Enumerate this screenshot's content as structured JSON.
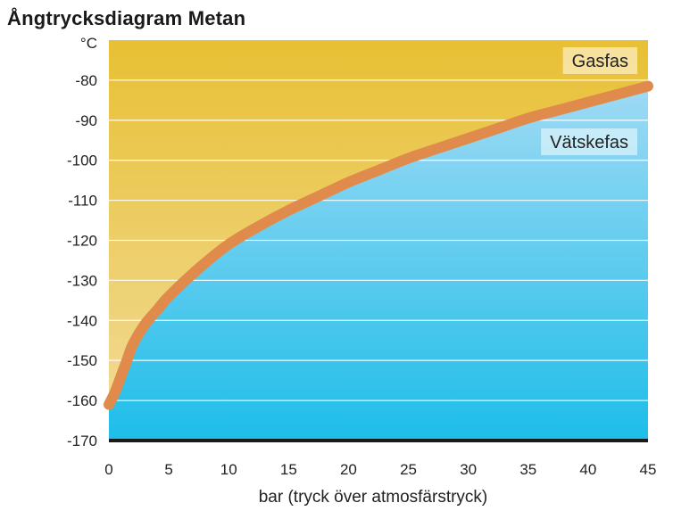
{
  "chart_data": {
    "type": "line",
    "title": "Ångtrycksdiagram Metan",
    "xlabel": "bar (tryck över atmosfärstryck)",
    "ylabel": "°C",
    "xlim": [
      0,
      45
    ],
    "ylim": [
      -170,
      -70
    ],
    "x_ticks": [
      0,
      5,
      10,
      15,
      20,
      25,
      30,
      35,
      40,
      45
    ],
    "y_ticks": [
      -80,
      -90,
      -100,
      -110,
      -120,
      -130,
      -140,
      -150,
      -160,
      -170
    ],
    "grid": true,
    "series": [
      {
        "x": [
          0,
          0.5,
          1,
          1.5,
          2,
          3,
          4,
          5,
          7.5,
          10,
          12.5,
          15,
          17.5,
          20,
          22.5,
          25,
          27.5,
          30,
          32.5,
          35,
          37.5,
          40,
          42.5,
          45
        ],
        "y": [
          -161,
          -158,
          -154,
          -150,
          -146,
          -141,
          -137.5,
          -134,
          -127,
          -121,
          -116.5,
          -112.5,
          -109,
          -105.5,
          -102.5,
          -99.5,
          -97,
          -94.5,
          -92,
          -89.5,
          -87.5,
          -85.5,
          -83.5,
          -81.5
        ]
      }
    ],
    "regions": [
      {
        "label": "Gasfas",
        "color_top": "#e8c034",
        "color_bottom": "#f2dc9c"
      },
      {
        "label": "Vätskefas",
        "color_top": "#9fdaf4",
        "color_bottom": "#1cbde9"
      }
    ],
    "colors": {
      "curve": "#e08a4c",
      "grid": "#ffffff",
      "baseline": "#1a1a1a"
    }
  }
}
